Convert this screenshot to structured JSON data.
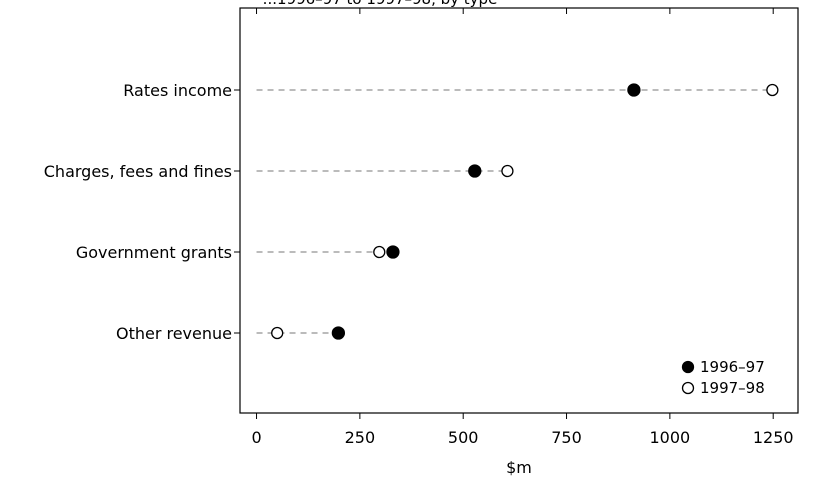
{
  "chart_data": {
    "type": "scatter",
    "title": "...1996–97 to 1997–98, by type",
    "xlabel": "$m",
    "ylabel": "",
    "xlim": [
      -40,
      1310
    ],
    "xticks": [
      0,
      250,
      500,
      750,
      1000,
      1250
    ],
    "xtick_labels": [
      "0",
      "250",
      "500",
      "750",
      "1000",
      "1250"
    ],
    "grid": false,
    "legend_position": "bottom-right",
    "categories": [
      "Rates income",
      "Charges, fees and fines",
      "Government grants",
      "Other revenue"
    ],
    "series": [
      {
        "name": "1996–97",
        "marker": "filled-circle",
        "color": "#000000",
        "values": [
          913,
          528,
          330,
          198
        ]
      },
      {
        "name": "1997–98",
        "marker": "open-circle",
        "color": "#000000",
        "values": [
          1248,
          607,
          297,
          50
        ]
      }
    ]
  }
}
